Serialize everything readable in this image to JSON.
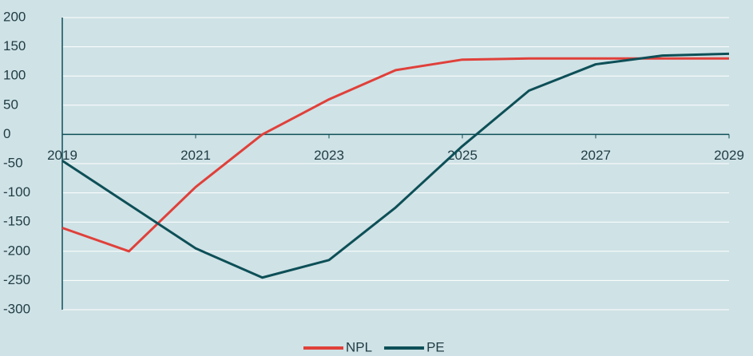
{
  "chart_data": {
    "type": "line",
    "x": [
      2019,
      2020,
      2021,
      2022,
      2023,
      2024,
      2025,
      2026,
      2027,
      2028,
      2029
    ],
    "series": [
      {
        "name": "NPL",
        "color": "#e0403a",
        "values": [
          -160,
          -200,
          -90,
          0,
          60,
          110,
          128,
          130,
          130,
          130,
          130
        ]
      },
      {
        "name": "PE",
        "color": "#0d4f57",
        "values": [
          -45,
          -120,
          -195,
          -245,
          -215,
          -125,
          -20,
          75,
          120,
          135,
          138
        ]
      }
    ],
    "xlim": [
      2019,
      2029
    ],
    "xticks": [
      2019,
      2021,
      2023,
      2025,
      2027,
      2029
    ],
    "ylim": [
      -300,
      200
    ],
    "yticks": [
      -300,
      -250,
      -200,
      -150,
      -100,
      -50,
      0,
      50,
      100,
      150,
      200
    ],
    "grid": true,
    "legend": "bottom"
  }
}
